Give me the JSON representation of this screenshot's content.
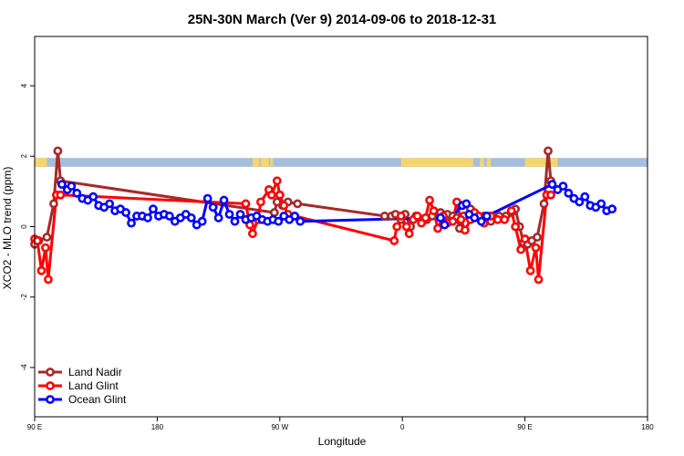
{
  "chart_data": {
    "type": "line",
    "title": "25N-30N March (Ver 9)   2014-09-06 to 2018-12-31",
    "xlabel": "Longitude",
    "ylabel": "XCO2 - MLO trend (ppm)",
    "xlim": [
      90,
      540
    ],
    "ylim": [
      -5.4,
      5.4
    ],
    "x_ticks": [
      {
        "value": 90,
        "label": "90 E"
      },
      {
        "value": 180,
        "label": "180"
      },
      {
        "value": 270,
        "label": "90 W"
      },
      {
        "value": 360,
        "label": "0"
      },
      {
        "value": 450,
        "label": "90 E"
      },
      {
        "value": 540,
        "label": "180"
      }
    ],
    "y_ticks": [
      {
        "value": -4,
        "label": "-4"
      },
      {
        "value": -2,
        "label": "-2"
      },
      {
        "value": 0,
        "label": "0"
      },
      {
        "value": 2,
        "label": "2"
      },
      {
        "value": 4,
        "label": "4"
      }
    ],
    "grid": false,
    "legend_position": "bottom-left",
    "land_mask_band": {
      "y_range": [
        1.7,
        1.95
      ],
      "ocean_color": "#a5bedd",
      "land_color": "#f5d56e",
      "land_segments": [
        [
          90,
          99
        ],
        [
          250,
          255
        ],
        [
          256,
          262
        ],
        [
          263,
          265
        ],
        [
          359,
          412
        ],
        [
          417,
          420
        ],
        [
          422,
          425
        ],
        [
          450,
          474
        ]
      ]
    },
    "series": [
      {
        "name": "Land Nadir",
        "color": "#a52a2a",
        "points": [
          [
            90,
            -0.5
          ],
          [
            93,
            -0.4
          ],
          [
            99,
            -0.3
          ],
          [
            104,
            0.65
          ],
          [
            107,
            2.15
          ],
          [
            109,
            1.3
          ],
          [
            266,
            0.4
          ],
          [
            268,
            0.7
          ],
          [
            270,
            0.9
          ],
          [
            272,
            0.6
          ],
          [
            276,
            0.7
          ],
          [
            283,
            0.65
          ],
          [
            347,
            0.3
          ],
          [
            352,
            0.3
          ],
          [
            355,
            0.35
          ],
          [
            359,
            0.2
          ],
          [
            362,
            0.35
          ],
          [
            366,
            0.0
          ],
          [
            370,
            0.3
          ],
          [
            374,
            0.2
          ],
          [
            378,
            0.2
          ],
          [
            382,
            0.3
          ],
          [
            388,
            0.4
          ],
          [
            393,
            0.35
          ],
          [
            397,
            0.3
          ],
          [
            400,
            0.25
          ],
          [
            402,
            -0.05
          ],
          [
            405,
            0.3
          ],
          [
            410,
            0.5
          ],
          [
            413,
            0.35
          ],
          [
            416,
            0.25
          ],
          [
            420,
            0.3
          ],
          [
            425,
            0.15
          ],
          [
            431,
            0.3
          ],
          [
            436,
            0.3
          ],
          [
            440,
            0.4
          ],
          [
            443,
            0.5
          ],
          [
            446,
            0.0
          ],
          [
            449,
            -0.45
          ],
          [
            452,
            -0.5
          ],
          [
            455,
            -0.4
          ],
          [
            459,
            -0.3
          ],
          [
            464,
            0.65
          ],
          [
            467,
            2.15
          ],
          [
            469,
            1.3
          ]
        ]
      },
      {
        "name": "Land Glint",
        "color": "#ff0000",
        "points": [
          [
            90,
            -0.35
          ],
          [
            92,
            -0.4
          ],
          [
            95,
            -1.25
          ],
          [
            98,
            -0.6
          ],
          [
            100,
            -1.5
          ],
          [
            106,
            0.9
          ],
          [
            109,
            0.9
          ],
          [
            245,
            0.65
          ],
          [
            248,
            0.05
          ],
          [
            250,
            -0.2
          ],
          [
            254,
            0.2
          ],
          [
            256,
            0.7
          ],
          [
            262,
            1.05
          ],
          [
            264,
            0.9
          ],
          [
            268,
            1.3
          ],
          [
            270,
            0.9
          ],
          [
            273,
            0.6
          ],
          [
            276,
            0.35
          ],
          [
            354,
            -0.4
          ],
          [
            356,
            0.0
          ],
          [
            359,
            0.3
          ],
          [
            363,
            0.0
          ],
          [
            365,
            -0.2
          ],
          [
            368,
            0.2
          ],
          [
            371,
            0.3
          ],
          [
            374,
            0.1
          ],
          [
            377,
            0.25
          ],
          [
            380,
            0.75
          ],
          [
            383,
            0.45
          ],
          [
            386,
            -0.05
          ],
          [
            390,
            0.3
          ],
          [
            393,
            0.1
          ],
          [
            397,
            0.15
          ],
          [
            400,
            0.7
          ],
          [
            403,
            0.2
          ],
          [
            406,
            -0.1
          ],
          [
            410,
            0.2
          ],
          [
            413,
            0.4
          ],
          [
            416,
            0.3
          ],
          [
            420,
            0.1
          ],
          [
            425,
            0.3
          ],
          [
            430,
            0.2
          ],
          [
            435,
            0.2
          ],
          [
            440,
            0.45
          ],
          [
            443,
            0.0
          ],
          [
            447,
            -0.65
          ],
          [
            450,
            -0.35
          ],
          [
            454,
            -1.25
          ],
          [
            458,
            -0.6
          ],
          [
            460,
            -1.5
          ],
          [
            466,
            0.9
          ],
          [
            469,
            0.9
          ]
        ]
      },
      {
        "name": "Ocean Glint",
        "color": "#0000ff",
        "points": [
          [
            110,
            1.2
          ],
          [
            114,
            1.05
          ],
          [
            117,
            1.15
          ],
          [
            121,
            0.95
          ],
          [
            125,
            0.8
          ],
          [
            129,
            0.75
          ],
          [
            133,
            0.85
          ],
          [
            137,
            0.6
          ],
          [
            141,
            0.55
          ],
          [
            145,
            0.65
          ],
          [
            149,
            0.45
          ],
          [
            153,
            0.5
          ],
          [
            157,
            0.4
          ],
          [
            161,
            0.1
          ],
          [
            165,
            0.3
          ],
          [
            169,
            0.3
          ],
          [
            173,
            0.25
          ],
          [
            177,
            0.5
          ],
          [
            181,
            0.3
          ],
          [
            185,
            0.35
          ],
          [
            189,
            0.3
          ],
          [
            193,
            0.15
          ],
          [
            197,
            0.25
          ],
          [
            201,
            0.35
          ],
          [
            205,
            0.25
          ],
          [
            209,
            0.05
          ],
          [
            213,
            0.15
          ],
          [
            217,
            0.8
          ],
          [
            221,
            0.55
          ],
          [
            225,
            0.25
          ],
          [
            229,
            0.75
          ],
          [
            233,
            0.35
          ],
          [
            237,
            0.15
          ],
          [
            241,
            0.35
          ],
          [
            245,
            0.2
          ],
          [
            249,
            0.25
          ],
          [
            253,
            0.3
          ],
          [
            257,
            0.2
          ],
          [
            261,
            0.15
          ],
          [
            265,
            0.2
          ],
          [
            269,
            0.15
          ],
          [
            273,
            0.3
          ],
          [
            277,
            0.2
          ],
          [
            281,
            0.3
          ],
          [
            285,
            0.15
          ],
          [
            388,
            0.25
          ],
          [
            391,
            0.05
          ],
          [
            404,
            0.6
          ],
          [
            407,
            0.65
          ],
          [
            409,
            0.35
          ],
          [
            413,
            0.25
          ],
          [
            418,
            0.15
          ],
          [
            422,
            0.3
          ],
          [
            470,
            1.2
          ],
          [
            474,
            1.05
          ],
          [
            478,
            1.15
          ],
          [
            482,
            0.95
          ],
          [
            486,
            0.8
          ],
          [
            490,
            0.7
          ],
          [
            494,
            0.85
          ],
          [
            498,
            0.6
          ],
          [
            502,
            0.55
          ],
          [
            506,
            0.65
          ],
          [
            510,
            0.45
          ],
          [
            514,
            0.5
          ]
        ]
      }
    ]
  }
}
